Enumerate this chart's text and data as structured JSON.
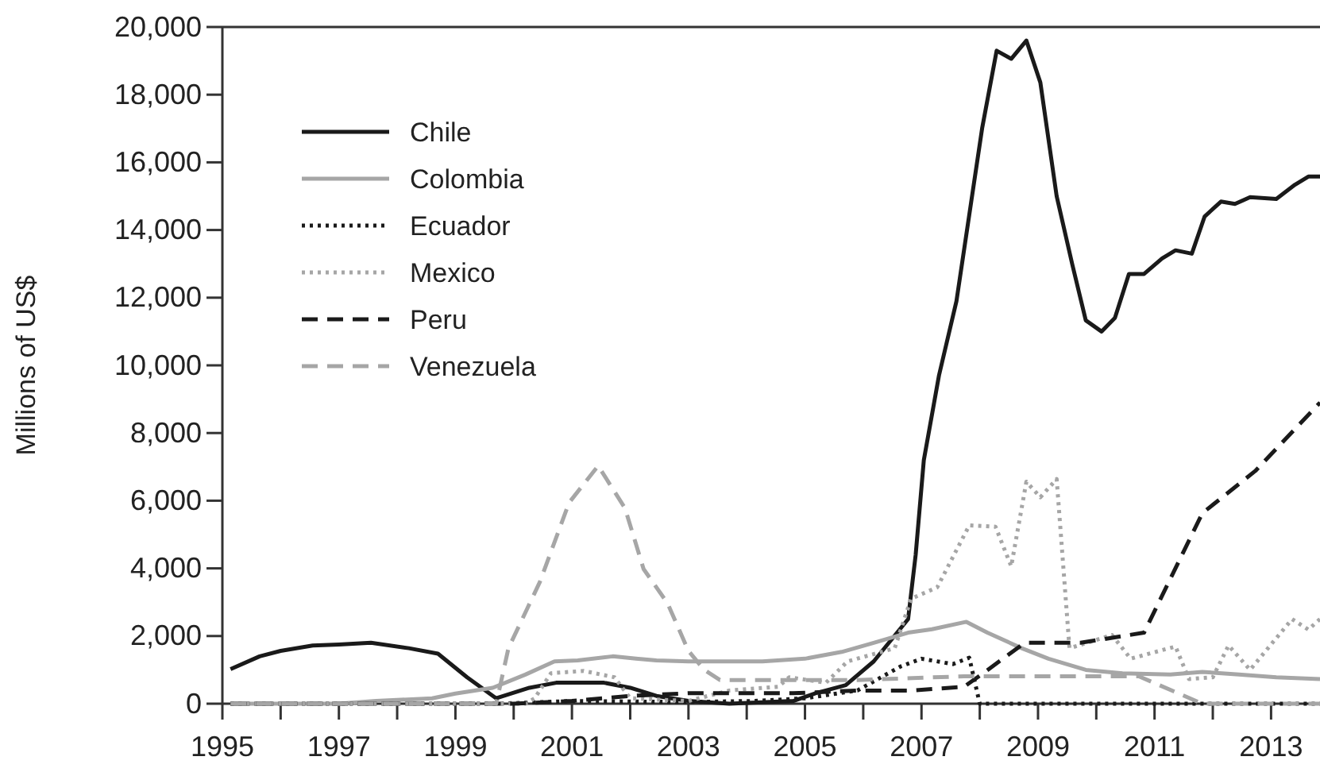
{
  "chart_data": {
    "type": "line",
    "ylabel": "Millions of US$",
    "xlim": [
      1995,
      2013.84
    ],
    "xticks": [
      1995,
      {
        "value": 1996,
        "label": null
      },
      1997,
      {
        "value": 1998,
        "label": null
      },
      1999,
      {
        "value": 2000,
        "label": null
      },
      2001,
      {
        "value": 2002,
        "label": null
      },
      2003,
      {
        "value": 2004,
        "label": null
      },
      2005,
      {
        "value": 2006,
        "label": null
      },
      2007,
      {
        "value": 2008,
        "label": null
      },
      2009,
      {
        "value": 2010,
        "label": null
      },
      2011,
      {
        "value": 2012,
        "label": null
      },
      2013
    ],
    "ylim": [
      0,
      20000
    ],
    "yticks": [
      {
        "value": 0,
        "label": "0"
      },
      {
        "value": 2000,
        "label": "2,000"
      },
      {
        "value": 4000,
        "label": "4,000"
      },
      {
        "value": 6000,
        "label": "6,000"
      },
      {
        "value": 8000,
        "label": "8,000"
      },
      {
        "value": 10000,
        "label": "10,000"
      },
      {
        "value": 12000,
        "label": "12,000"
      },
      {
        "value": 14000,
        "label": "14,000"
      },
      {
        "value": 16000,
        "label": "16,000"
      },
      {
        "value": 18000,
        "label": "18,000"
      },
      {
        "value": 20000,
        "label": "20,000"
      }
    ],
    "grid": false,
    "legend": "top left",
    "marker": "none",
    "series": [
      {
        "name": "Chile",
        "color": "#1a1a1a",
        "line_style": "solid",
        "x": [
          1995.14,
          1995.64,
          1996.0,
          1996.55,
          1997.0,
          1997.55,
          1998.2,
          1998.7,
          1999.2,
          1999.7,
          2000.27,
          2000.73,
          2001.55,
          2002.0,
          2002.45,
          2003.0,
          2003.7,
          2004.8,
          2005.18,
          2005.7,
          2006.18,
          2006.77,
          2006.9,
          2007.04,
          2007.3,
          2007.6,
          2008.04,
          2008.29,
          2008.54,
          2008.8,
          2009.04,
          2009.32,
          2009.59,
          2009.82,
          2010.09,
          2010.32,
          2010.56,
          2010.82,
          2011.13,
          2011.36,
          2011.64,
          2011.86,
          2012.14,
          2012.38,
          2012.64,
          2013.09,
          2013.41,
          2013.64,
          2013.84
        ],
        "values": [
          1020,
          1400,
          1560,
          1720,
          1750,
          1800,
          1640,
          1480,
          780,
          160,
          470,
          620,
          620,
          470,
          230,
          80,
          0,
          80,
          310,
          550,
          1250,
          2500,
          4400,
          7200,
          9700,
          11900,
          17000,
          19300,
          19060,
          19600,
          18360,
          15000,
          12970,
          11330,
          11000,
          11400,
          12700,
          12700,
          13160,
          13400,
          13300,
          14400,
          14840,
          14770,
          14970,
          14920,
          15340,
          15580,
          15580
        ]
      },
      {
        "name": "Colombia",
        "color": "#a6a6a6",
        "line_style": "solid",
        "x": [
          1995.14,
          1997.0,
          1997.64,
          1998.6,
          1999.0,
          1999.64,
          2000.2,
          2000.7,
          2001.1,
          2001.7,
          2002.1,
          2002.45,
          2003.0,
          2004.27,
          2005.0,
          2005.63,
          2006.18,
          2006.77,
          2007.18,
          2007.77,
          2008.13,
          2008.72,
          2009.18,
          2009.82,
          2010.45,
          2011.27,
          2011.82,
          2012.45,
          2013.09,
          2013.84
        ],
        "values": [
          0,
          0,
          80,
          160,
          300,
          470,
          860,
          1250,
          1280,
          1400,
          1330,
          1280,
          1250,
          1250,
          1330,
          1530,
          1800,
          2100,
          2200,
          2420,
          2100,
          1640,
          1330,
          1000,
          900,
          860,
          940,
          860,
          780,
          730
        ]
      },
      {
        "name": "Ecuador",
        "color": "#1a1a1a",
        "line_style": "dotted",
        "x": [
          1995.14,
          1999.73,
          2001.0,
          2003.0,
          2004.09,
          2005.0,
          2005.9,
          2006.64,
          2007.0,
          2007.54,
          2007.82,
          2008.0,
          2013.84
        ],
        "values": [
          0,
          0,
          80,
          50,
          80,
          160,
          390,
          1100,
          1330,
          1170,
          1360,
          0,
          0
        ]
      },
      {
        "name": "Mexico",
        "color": "#a6a6a6",
        "line_style": "dotted",
        "x": [
          1995.14,
          2000.2,
          2000.36,
          2000.64,
          2001.2,
          2001.73,
          2002.0,
          2003.0,
          2003.7,
          2004.54,
          2004.73,
          2005.36,
          2005.73,
          2006.54,
          2006.82,
          2007.27,
          2007.82,
          2008.27,
          2008.54,
          2008.8,
          2009.04,
          2009.32,
          2009.54,
          2010.27,
          2010.59,
          2011.36,
          2011.59,
          2012.0,
          2012.27,
          2012.64,
          2013.36,
          2013.64,
          2013.84
        ],
        "values": [
          0,
          0,
          160,
          900,
          970,
          780,
          160,
          80,
          390,
          500,
          780,
          620,
          1250,
          1640,
          3100,
          3440,
          5270,
          5230,
          4060,
          6560,
          6100,
          6640,
          1640,
          2030,
          1330,
          1690,
          730,
          780,
          1720,
          1000,
          2500,
          2190,
          2500
        ]
      },
      {
        "name": "Peru",
        "color": "#1a1a1a",
        "line_style": "dashed",
        "x": [
          1995.14,
          2000.0,
          2001.0,
          2002.0,
          2003.0,
          2004.8,
          2005.9,
          2006.82,
          2007.73,
          2008.09,
          2008.77,
          2009.73,
          2010.82,
          2011.82,
          2012.73,
          2013.84
        ],
        "values": [
          0,
          0,
          80,
          230,
          310,
          310,
          390,
          390,
          500,
          940,
          1800,
          1800,
          2100,
          5630,
          6880,
          8900
        ]
      },
      {
        "name": "Venezuela",
        "color": "#a6a6a6",
        "line_style": "dashed",
        "x": [
          1995.14,
          1999.7,
          1999.91,
          2000.45,
          2000.95,
          2001.45,
          2001.91,
          2002.23,
          2002.64,
          2003.0,
          2003.27,
          2003.54,
          2004.09,
          2005.9,
          2007.73,
          2010.73,
          2011.82,
          2013.84
        ],
        "values": [
          0,
          0,
          1640,
          3600,
          5940,
          7030,
          5780,
          3980,
          2970,
          1560,
          1000,
          700,
          700,
          700,
          810,
          810,
          0,
          0
        ]
      }
    ]
  }
}
